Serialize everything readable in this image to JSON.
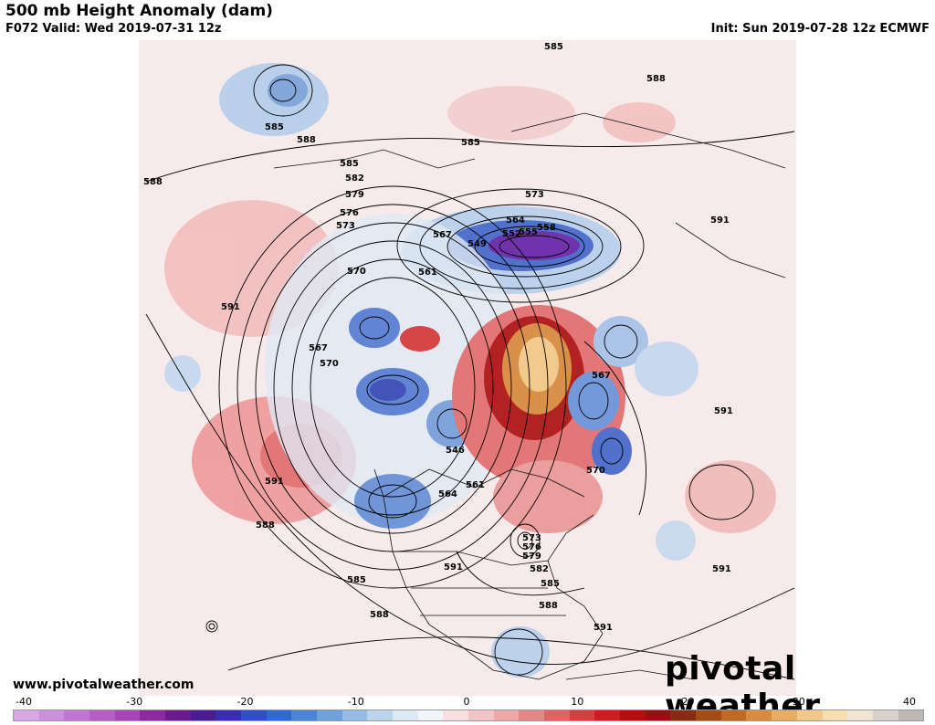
{
  "header": {
    "title": "500 mb Height Anomaly (dam)",
    "valid": "F072 Valid: Wed 2019-07-31 12z",
    "init": "Init: Sun 2019-07-28 12z ECMWF"
  },
  "footer": {
    "website": "www.pivotalweather.com",
    "brand_pre": "pivot",
    "brand_post": "al weather"
  },
  "contour_labels": [
    "585",
    "588",
    "585",
    "588",
    "588",
    "585",
    "582",
    "579",
    "576",
    "573",
    "570",
    "567",
    "564",
    "561",
    "558",
    "555",
    "552",
    "549",
    "546",
    "591",
    "591",
    "591",
    "591",
    "591",
    "591",
    "573",
    "576",
    "579",
    "582",
    "585",
    "588",
    "591",
    "588",
    "585",
    "588",
    "567",
    "570",
    "561",
    "564",
    "567",
    "570",
    "573",
    "585"
  ],
  "colorbar": {
    "ticks": [
      "-40",
      "-30",
      "-20",
      "-10",
      "0",
      "10",
      "20",
      "30",
      "40"
    ],
    "colors": [
      "#d9a6e6",
      "#cc8fdd",
      "#c275d2",
      "#b85cc6",
      "#a645b6",
      "#8c2aa0",
      "#6e1a8f",
      "#4b1a94",
      "#3a2db0",
      "#2f4fc6",
      "#2f6ad0",
      "#4b86d6",
      "#6fa2dd",
      "#95bce6",
      "#bcd5ee",
      "#dde9f5",
      "#f2f5f9",
      "#f8e0e0",
      "#f4c4c4",
      "#eea8a8",
      "#e68787",
      "#de6464",
      "#d63f3f",
      "#c82020",
      "#b01010",
      "#961010",
      "#8a2a10",
      "#a44c18",
      "#c06a28",
      "#d88c40",
      "#e8ad62",
      "#f2c98a",
      "#f7dfb0",
      "#f0e4d2",
      "#d8d2cc",
      "#bdb8b4"
    ]
  }
}
